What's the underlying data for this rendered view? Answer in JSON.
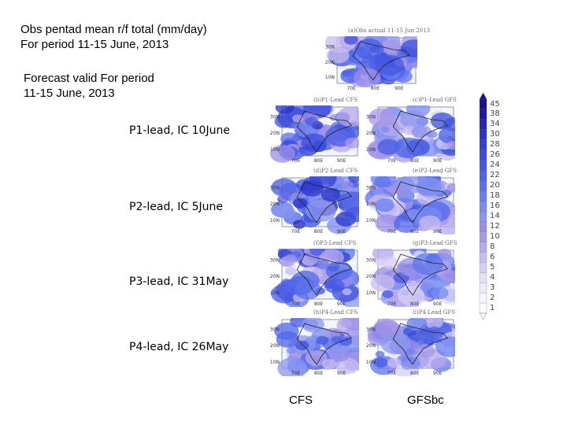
{
  "obs_title": {
    "line1": "Obs pentad mean r/f total (mm/day)",
    "line2": "For period 11-15 June, 2013"
  },
  "forecast_title": {
    "line1": "Forecast valid For period",
    "line2": "11-15 June, 2013"
  },
  "obs_map": {
    "title": "(a)Obs actual 11-15 Jun 2013"
  },
  "lat_labels": [
    "30N",
    "20N",
    "10N"
  ],
  "lon_labels": [
    "70E",
    "80E",
    "90E"
  ],
  "leads": [
    {
      "label": "P1-lead, IC 10June",
      "cfs_title": "(b)P1-Lead CFS",
      "gfs_title": "(c)P1-Lead GFS"
    },
    {
      "label": "P2-lead, IC 5June",
      "cfs_title": "(d)P2-Lead CFS",
      "gfs_title": "(e)P2-Lead GFS"
    },
    {
      "label": "P3-lead, IC 31May",
      "cfs_title": "(f)P3-Lead CFS",
      "gfs_title": "(g)P3-Lead GFS"
    },
    {
      "label": "P4-lead, IC 26May",
      "cfs_title": "(h)P4-Lead CFS",
      "gfs_title": "(i)P4-Lead GFS"
    }
  ],
  "columns": {
    "cfs": "CFS",
    "gfs": "GFSbc"
  },
  "colorbar": {
    "ticks": [
      "45",
      "38",
      "34",
      "30",
      "28",
      "26",
      "24",
      "22",
      "20",
      "18",
      "16",
      "14",
      "12",
      "10",
      "8",
      "6",
      "5",
      "4",
      "3",
      "2",
      "1"
    ],
    "colors": [
      "#1a0f8c",
      "#1e1aa6",
      "#2326b8",
      "#2a33c9",
      "#3140d4",
      "#3a4ddd",
      "#4559e4",
      "#5066ea",
      "#5c73ee",
      "#6a7ff1",
      "#7a8bf3",
      "#8b96f0",
      "#9a8de8",
      "#a998e8",
      "#b8a8ec",
      "#c8bcf0",
      "#d6cff4",
      "#e2e0f7",
      "#ebedfa",
      "#f3f6fc",
      "#fafcfe"
    ]
  }
}
